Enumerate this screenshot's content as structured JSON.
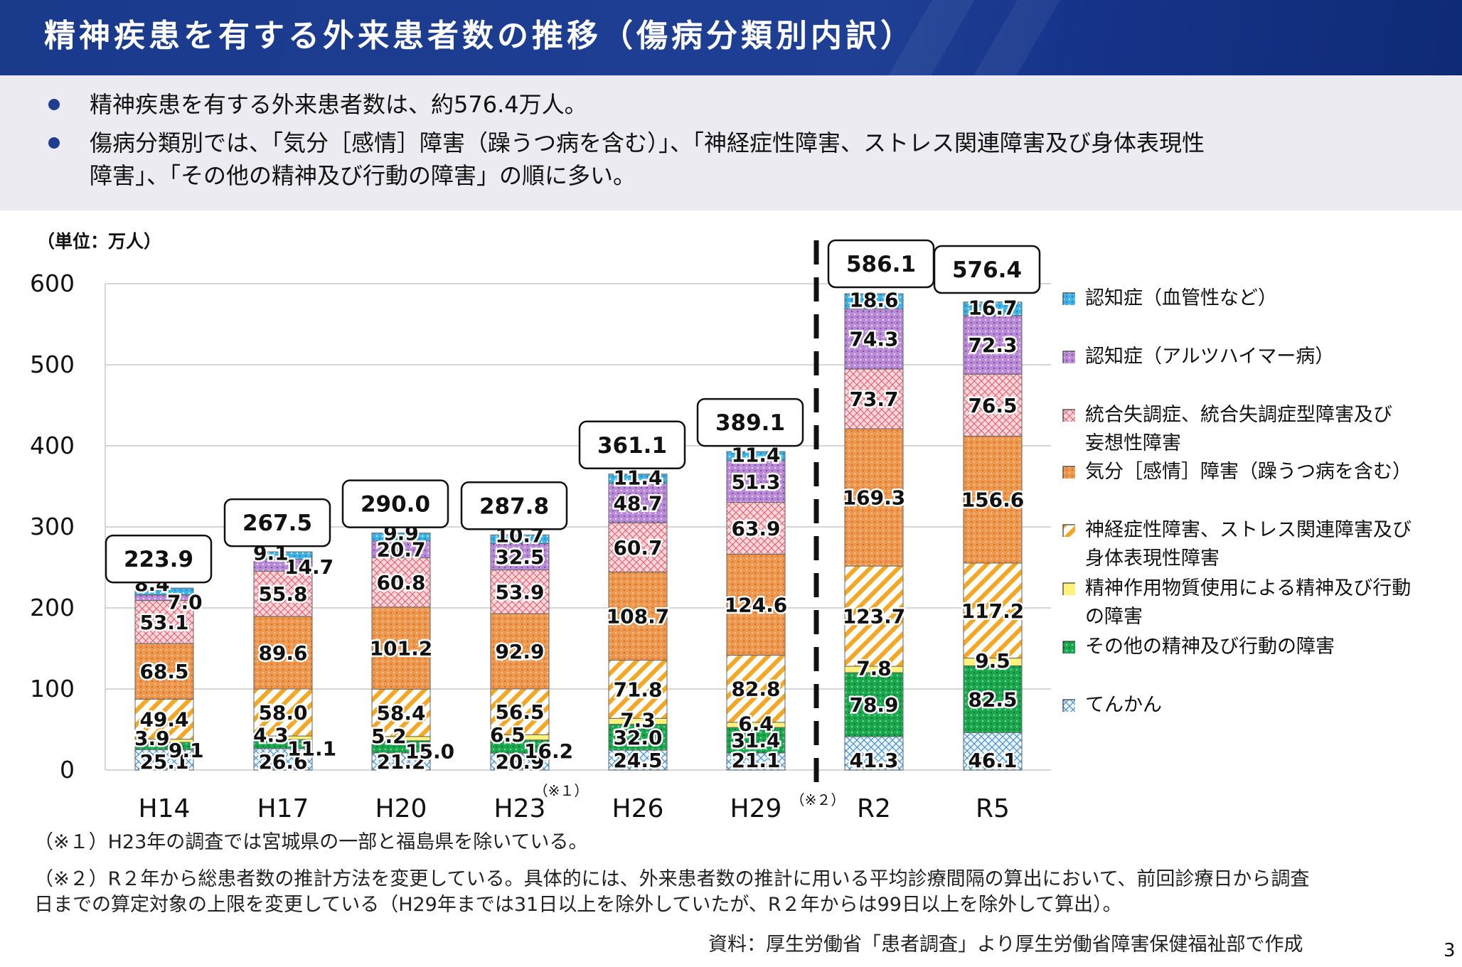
{
  "title": "精神疾患を有する外来患者数の推移（傷病分類別内訳）",
  "bullets": [
    {
      "lines": [
        "精神疾患を有する外来患者数は、約576.4万人。"
      ]
    },
    {
      "lines": [
        "傷病分類別では、「気分［感情］障害（躁うつ病を含む）」、「神経症性障害、ストレス関連障害及び身体表現性",
        "障害」、「その他の精神及び行動の障害」の順に多い。"
      ]
    }
  ],
  "unit_label": "（単位：万人）",
  "notes": [
    "（※１）H23年の調査では宮城県の一部と福島県を除いている。",
    "（※２）R２年から総患者数の推計方法を変更している。具体的には、外来患者数の推計に用いる平均診療間隔の算出において、前回診療日から調査",
    "日までの算定対象の上限を変更している（H29年までは31日以上を除外していたが、R２年からは99日以上を除外して算出）。"
  ],
  "source": "資料：厚生労働省「患者調査」より厚生労働省障害保健福祉部で作成",
  "page_number": "3",
  "chart_data": {
    "type": "bar",
    "stacked": true,
    "categories": [
      "H14",
      "H17",
      "H20",
      "H23",
      "H26",
      "H29",
      "R2",
      "R5"
    ],
    "category_notes": [
      "",
      "",
      "",
      "（※１）",
      "",
      "",
      "",
      ""
    ],
    "divider_note": "（※２）",
    "ylim": [
      0,
      600
    ],
    "yticks": [
      0,
      100,
      200,
      300,
      400,
      500,
      600
    ],
    "grid": true,
    "legend_position": "right",
    "totals": [
      "223.9",
      "267.5",
      "290.0",
      "287.8",
      "361.1",
      "389.1",
      "586.1",
      "576.4"
    ],
    "series": [
      {
        "name": "てんかん",
        "color": "#cfe6f7",
        "pattern": "crosshatch",
        "values": [
          25.1,
          26.6,
          21.2,
          20.9,
          24.5,
          21.1,
          41.3,
          46.1
        ]
      },
      {
        "name": "その他の精神及び行動の障害",
        "color": "#1aa84f",
        "pattern": "dots-dark",
        "values": [
          9.1,
          11.1,
          15.0,
          16.2,
          32.0,
          31.4,
          78.9,
          82.5
        ]
      },
      {
        "name": "精神作用物質使用による精神及び行動の障害",
        "color": "#fff27a",
        "pattern": "none",
        "values": [
          3.9,
          4.3,
          5.2,
          6.5,
          7.3,
          6.4,
          7.8,
          9.5
        ]
      },
      {
        "name": "神経症性障害、ストレス関連障害及び身体表現性障害",
        "color": "#f5a623",
        "pattern": "diagonal",
        "values": [
          49.4,
          58.0,
          58.4,
          56.5,
          71.8,
          82.8,
          123.7,
          117.2
        ]
      },
      {
        "name": "気分［感情］障害（躁うつ病を含む）",
        "color": "#f0974e",
        "pattern": "dots",
        "values": [
          68.5,
          89.6,
          101.2,
          92.9,
          108.7,
          124.6,
          169.3,
          156.6
        ]
      },
      {
        "name": "統合失調症、統合失調症型障害及び妄想性障害",
        "color": "#f7b8bf",
        "pattern": "crosshatch-red",
        "values": [
          53.1,
          55.8,
          60.8,
          53.9,
          60.7,
          63.9,
          73.7,
          76.5
        ]
      },
      {
        "name": "認知症（アルツハイマー病）",
        "color": "#b98ad6",
        "pattern": "dots-light",
        "values": [
          7.0,
          14.7,
          20.7,
          32.5,
          48.7,
          51.3,
          74.3,
          72.3
        ]
      },
      {
        "name": "認知症（血管性など）",
        "color": "#3fb3e8",
        "pattern": "dots-light",
        "values": [
          8.4,
          9.1,
          9.9,
          10.7,
          11.4,
          11.4,
          18.6,
          16.7
        ]
      }
    ],
    "value_labels": [
      [
        "25.1",
        "9.1",
        "3.9",
        "49.4",
        "68.5",
        "53.1",
        "7.0",
        "8.4"
      ],
      [
        "26.6",
        "11.1",
        "4.3",
        "58.0",
        "89.6",
        "55.8",
        "14.7",
        "9.1"
      ],
      [
        "21.2",
        "15.0",
        "5.2",
        "58.4",
        "101.2",
        "60.8",
        "20.7",
        "9.9"
      ],
      [
        "20.9",
        "16.2",
        "6.5",
        "56.5",
        "92.9",
        "53.9",
        "32.5",
        "10.7"
      ],
      [
        "24.5",
        "32.0",
        "7.3",
        "71.8",
        "108.7",
        "60.7",
        "48.7",
        "11.4"
      ],
      [
        "21.1",
        "31.4",
        "6.4",
        "82.8",
        "124.6",
        "63.9",
        "51.3",
        "11.4"
      ],
      [
        "41.3",
        "78.9",
        "7.8",
        "123.7",
        "169.3",
        "73.7",
        "74.3",
        "18.6"
      ],
      [
        "46.1",
        "82.5",
        "9.5",
        "117.2",
        "156.6",
        "76.5",
        "72.3",
        "16.7"
      ]
    ],
    "legend_entries": [
      {
        "lines": [
          "認知症（血管性など）"
        ],
        "color": "#3fb3e8"
      },
      {
        "lines": [
          "認知症（アルツハイマー病）"
        ],
        "color": "#b98ad6"
      },
      {
        "lines": [
          "統合失調症、統合失調症型障害及び",
          "妄想性障害"
        ],
        "color": "#f7b8bf"
      },
      {
        "lines": [
          "気分［感情］障害（躁うつ病を含む）"
        ],
        "color": "#f0974e"
      },
      {
        "lines": [
          "神経症性障害、ストレス関連障害及び",
          "身体表現性障害"
        ],
        "color": "#f5a623"
      },
      {
        "lines": [
          "精神作用物質使用による精神及び行動",
          "の障害"
        ],
        "color": "#fff27a"
      },
      {
        "lines": [
          "その他の精神及び行動の障害"
        ],
        "color": "#1aa84f"
      },
      {
        "lines": [
          " てんかん"
        ],
        "color": "#cfe6f7"
      }
    ]
  }
}
